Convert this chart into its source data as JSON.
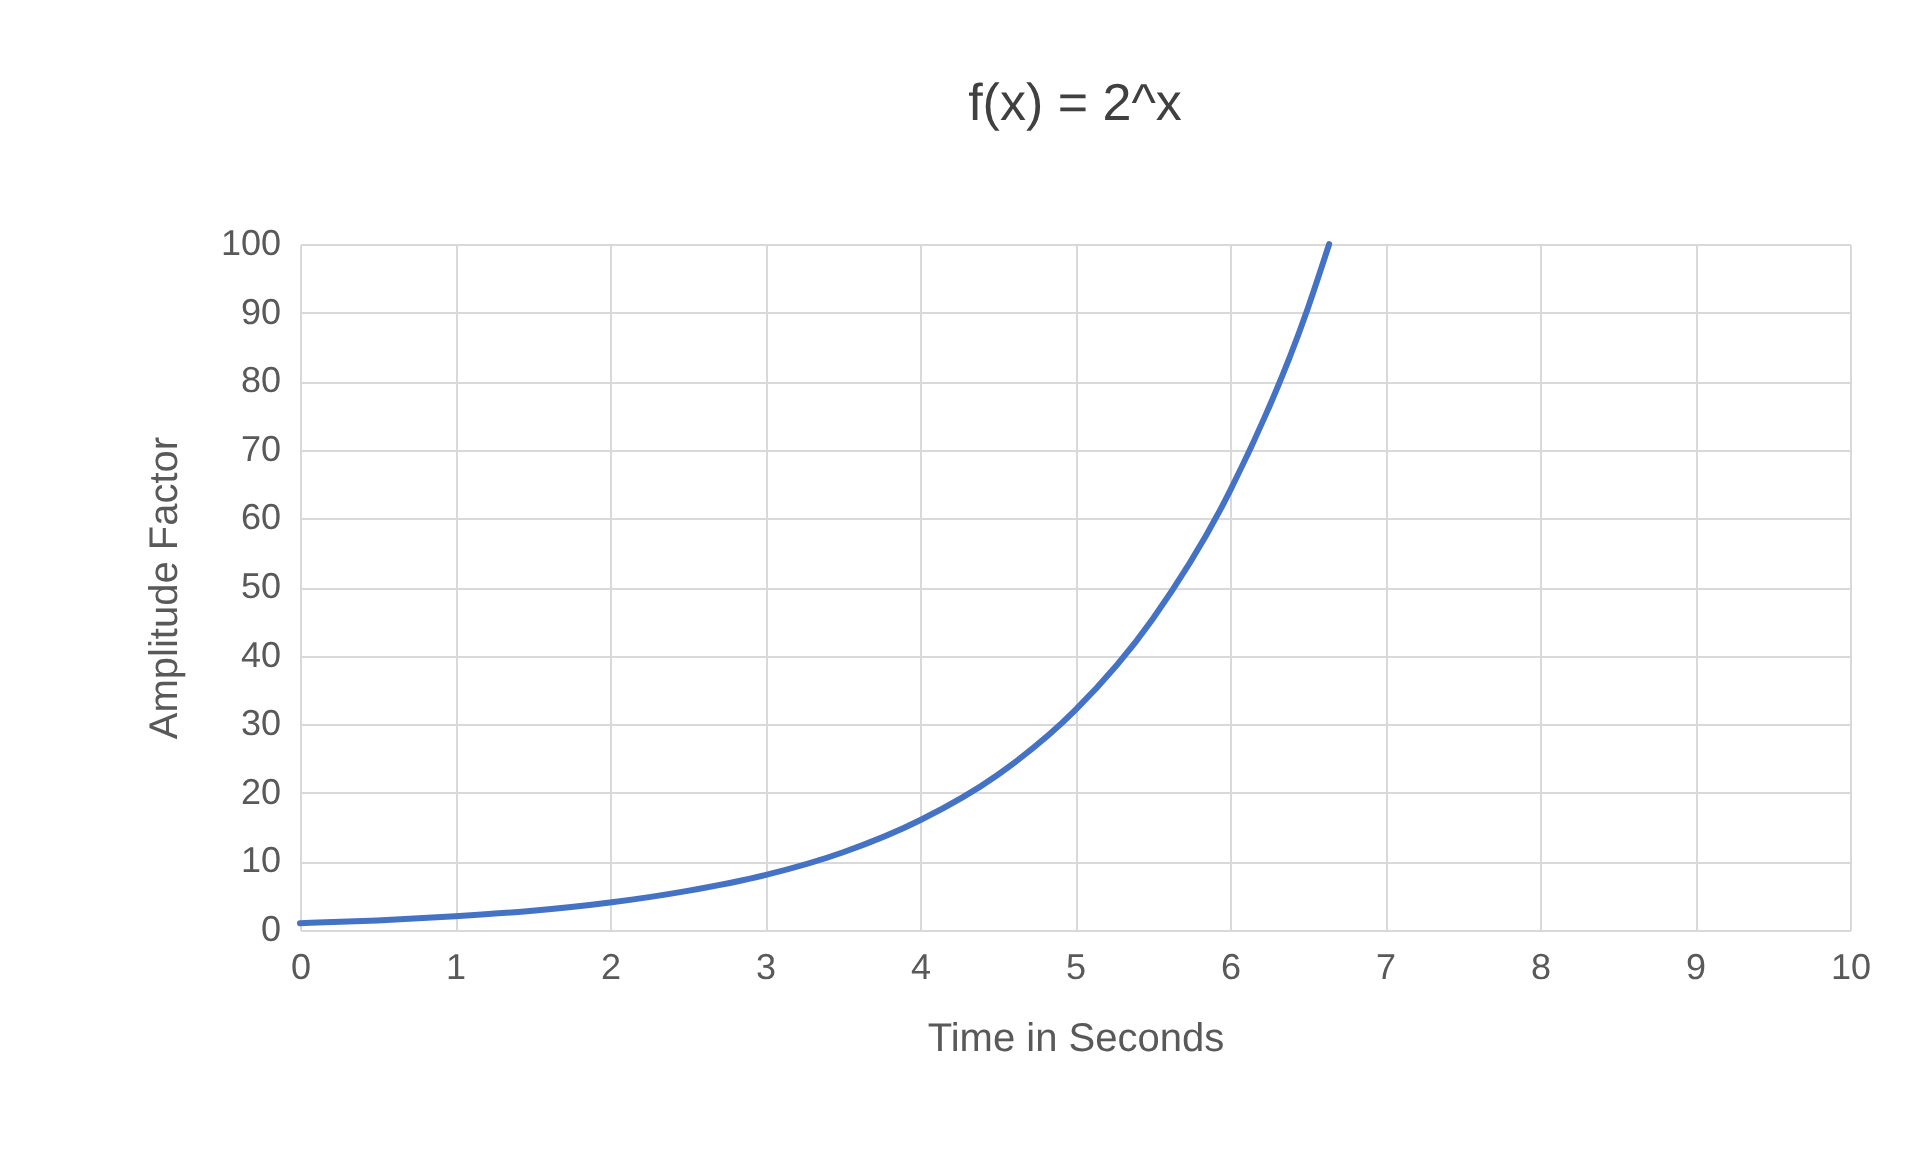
{
  "chart_data": {
    "type": "line",
    "title": "f(x) = 2^x",
    "xlabel": "Time in Seconds",
    "ylabel": "Amplitude Factor",
    "x": [
      0,
      0.5,
      1,
      1.5,
      2,
      2.5,
      3,
      3.5,
      4,
      4.5,
      5,
      5.5,
      6,
      6.5,
      6.64
    ],
    "series": [
      {
        "color": "#4472c4",
        "values": [
          1,
          1.4,
          2,
          2.8,
          4,
          5.7,
          8,
          11.3,
          16,
          22.6,
          32,
          45.3,
          64,
          90.5,
          100
        ]
      }
    ],
    "xlim": [
      0,
      10
    ],
    "xticks": [
      0,
      1,
      2,
      3,
      4,
      5,
      6,
      7,
      8,
      9,
      10
    ],
    "ylim": [
      0,
      100
    ],
    "yticks": [
      0,
      10,
      20,
      30,
      40,
      50,
      60,
      70,
      80,
      90,
      100
    ],
    "grid": true,
    "marker": "none",
    "line_style": "solid"
  }
}
